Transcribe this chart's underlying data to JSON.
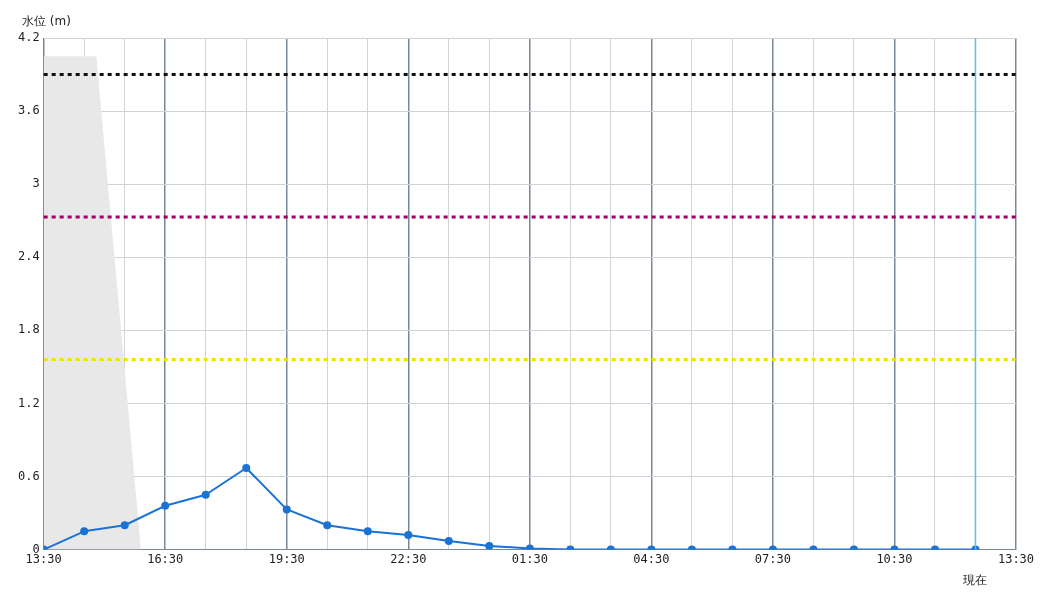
{
  "chart_data": {
    "type": "line",
    "ylabel": "水位 (m)",
    "legend": false,
    "grid": true,
    "marker": "circle",
    "line_style": "solid",
    "xlim": [
      "--01-01T13:30",
      "--01-02T13:30"
    ],
    "xticks": [
      {
        "value": "--01-01T13:30",
        "label": "13:30"
      },
      {
        "value": "--01-01T14:30",
        "label": null
      },
      {
        "value": "--01-01T15:30",
        "label": null
      },
      {
        "value": "--01-01T16:30",
        "label": "16:30"
      },
      {
        "value": "--01-01T17:30",
        "label": null
      },
      {
        "value": "--01-01T18:30",
        "label": null
      },
      {
        "value": "--01-01T19:30",
        "label": "19:30"
      },
      {
        "value": "--01-01T20:30",
        "label": null
      },
      {
        "value": "--01-01T21:30",
        "label": null
      },
      {
        "value": "--01-01T22:30",
        "label": "22:30"
      },
      {
        "value": "--01-01T23:30",
        "label": null
      },
      {
        "value": "--01-02T00:30",
        "label": null
      },
      {
        "value": "--01-02T01:30",
        "label": "01:30"
      },
      {
        "value": "--01-02T02:30",
        "label": null
      },
      {
        "value": "--01-02T03:30",
        "label": null
      },
      {
        "value": "--01-02T04:30",
        "label": "04:30"
      },
      {
        "value": "--01-02T05:30",
        "label": null
      },
      {
        "value": "--01-02T06:30",
        "label": null
      },
      {
        "value": "--01-02T07:30",
        "label": "07:30"
      },
      {
        "value": "--01-02T08:30",
        "label": null
      },
      {
        "value": "--01-02T09:30",
        "label": null
      },
      {
        "value": "--01-02T10:30",
        "label": "10:30"
      },
      {
        "value": "--01-02T11:30",
        "label": null
      },
      {
        "value": "--01-02T12:30",
        "label": null
      },
      {
        "value": "--01-02T13:30",
        "label": "13:30"
      }
    ],
    "ylim": [
      0,
      4.2
    ],
    "yticks": [
      0,
      0.6,
      1.2,
      1.8,
      2.4,
      3,
      3.6,
      4.2
    ],
    "series": [
      {
        "type": "area",
        "color": "#e8e8e8",
        "marker": "none",
        "x": [
          "--01-01T13:30",
          "--01-01T14:48",
          "--01-01T15:54"
        ],
        "values": [
          4.05,
          4.05,
          0
        ]
      },
      {
        "color": "#1a73d4",
        "x": [
          "--01-01T13:30",
          "--01-01T14:30",
          "--01-01T15:30",
          "--01-01T16:30",
          "--01-01T17:30",
          "--01-01T18:30",
          "--01-01T19:30",
          "--01-01T20:30",
          "--01-01T21:30",
          "--01-01T22:30",
          "--01-01T23:30",
          "--01-02T00:30",
          "--01-02T01:30",
          "--01-02T02:30",
          "--01-02T03:30",
          "--01-02T04:30",
          "--01-02T05:30",
          "--01-02T06:30",
          "--01-02T07:30",
          "--01-02T08:30",
          "--01-02T09:30",
          "--01-02T10:30",
          "--01-02T11:30",
          "--01-02T12:30"
        ],
        "values": [
          0,
          0.15,
          0.2,
          0.36,
          0.45,
          0.67,
          0.33,
          0.2,
          0.15,
          0.12,
          0.07,
          0.03,
          0.01,
          0,
          0,
          0,
          0,
          0,
          0,
          0,
          0,
          0,
          0,
          0
        ]
      }
    ],
    "ref_lines": [
      {
        "axis": "y",
        "value": 3.9,
        "color": "#111111",
        "line_style": "dotted"
      },
      {
        "axis": "y",
        "value": 2.73,
        "color": "#990066",
        "line_style": "dotted"
      },
      {
        "axis": "y",
        "value": 1.56,
        "color": "#f0e000",
        "line_style": "dotted"
      },
      {
        "axis": "x",
        "value": "--01-02T12:30",
        "label": "現在",
        "color": "#4fc3f7",
        "line_style": "solid"
      }
    ]
  }
}
